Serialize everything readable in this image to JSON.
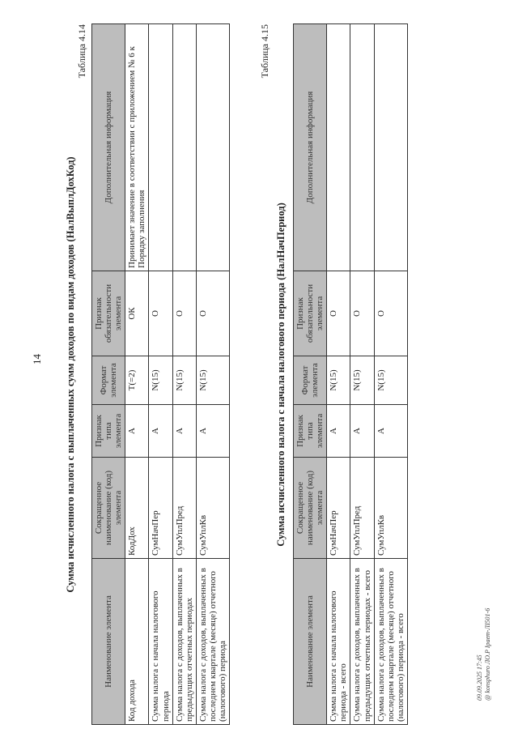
{
  "header": {
    "page_number": "14"
  },
  "tables": [
    {
      "caption": "Таблица 4.14",
      "title": "Сумма исчисленного налога с выплаченных сумм доходов по видам доходов (НалВыплДохКод)",
      "columns": [
        "Наименование элемента",
        "Сокращенное наименование (код) элемента",
        "Признак типа элемента",
        "Формат элемента",
        "Признак обязательности элемента",
        "Дополнительная информация"
      ],
      "rows": [
        [
          "Код дохода",
          "КодДох",
          "А",
          "Т(=2)",
          "ОК",
          "Принимает значение в соответствии с приложением № 6 к Порядку заполнения"
        ],
        [
          "Сумма налога с начала налогового периода",
          "СумНачПер",
          "А",
          "N(15)",
          "О",
          null
        ],
        [
          "Сумма налога с доходов, выплаченных в предыдущих отчетных периодах",
          "СумУплПред",
          "А",
          "N(15)",
          "О",
          null
        ],
        [
          "Сумма налога с доходов, выплаченных в последнем квартале (месяце) отчетного (налогового) периода",
          "СумУплКв",
          "А",
          "N(15)",
          "О",
          null
        ]
      ]
    },
    {
      "caption": "Таблица 4.15",
      "title": "Сумма исчисленного налога с начала налогового периода (НалНачПериод)",
      "columns": [
        "Наименование элемента",
        "Сокращенное наименование (код) элемента",
        "Признак типа элемента",
        "Формат элемента",
        "Признак обязательности элемента",
        "Дополнительная информация"
      ],
      "rows": [
        [
          "Сумма налога с начала налогового периода - всего",
          "СумНачПер",
          "А",
          "N(15)",
          "О",
          null
        ],
        [
          "Сумма налога с доходов, выплаченных в предыдущих отчетных периодах - всего",
          "СумУплПред",
          "А",
          "N(15)",
          "О",
          null
        ],
        [
          "Сумма налога с доходов, выплаченных в последнем квартале (месяце) отчетного (налогового) периода - всего",
          "СумУплКв",
          "А",
          "N(15)",
          "О",
          null
        ]
      ]
    }
  ],
  "footer": {
    "lines": [
      "09.09.2025 17:45",
      "@ konsphuro ЛО.Р Ірает-ЛІ501-6"
    ]
  }
}
